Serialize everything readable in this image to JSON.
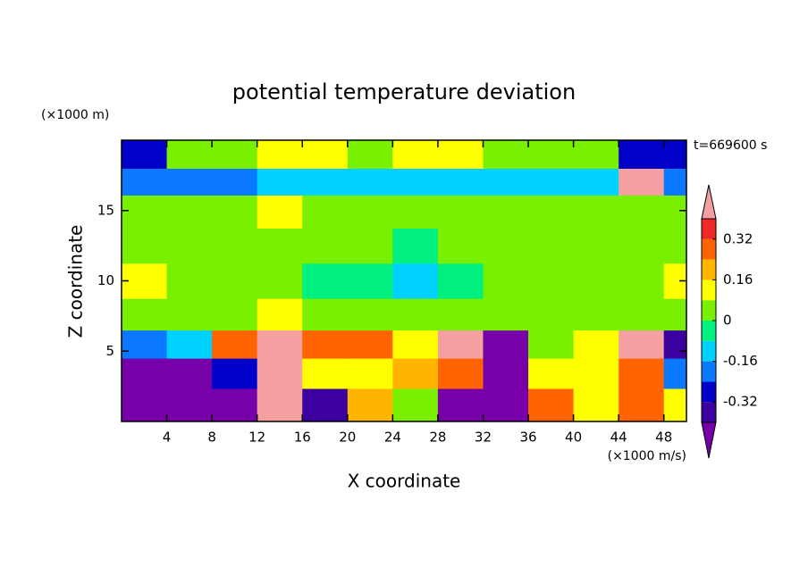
{
  "chart_data": {
    "type": "contour",
    "title": "potential temperature deviation",
    "x_label": "X coordinate",
    "y_label": "Z coordinate",
    "x_unit": "(×1000 m/s)",
    "y_unit": "(×1000 m)",
    "annotation": "t=669600 s",
    "xlim": [
      0,
      50
    ],
    "ylim": [
      0,
      20
    ],
    "xticks": [
      4,
      8,
      12,
      16,
      20,
      24,
      28,
      32,
      36,
      40,
      44,
      48
    ],
    "yticks": [
      5,
      10,
      15
    ],
    "x": [
      2,
      6,
      10,
      14,
      18,
      22,
      26,
      30,
      34,
      38,
      42,
      46,
      50
    ],
    "y": [
      1.2,
      3.5,
      5.5,
      7.5,
      10,
      12.5,
      15,
      17.2,
      18.8
    ],
    "z": [
      [
        -0.45,
        -0.45,
        -0.45,
        0.45,
        -0.35,
        0.2,
        0.05,
        -0.45,
        -0.45,
        0.3,
        0.1,
        0.3,
        0.1
      ],
      [
        -0.45,
        -0.45,
        -0.3,
        0.45,
        0.1,
        0.1,
        0.2,
        0.3,
        -0.45,
        0.1,
        0.1,
        0.3,
        -0.2
      ],
      [
        -0.2,
        -0.1,
        0.3,
        0.45,
        0.3,
        0.3,
        0.1,
        0.45,
        -0.45,
        0.05,
        0.1,
        0.45,
        -0.4
      ],
      [
        0.05,
        0.05,
        0.05,
        0.1,
        0.02,
        0.02,
        0.02,
        0.02,
        0.02,
        0.02,
        0.02,
        0.05,
        0.02
      ],
      [
        0.1,
        0.02,
        0.02,
        0,
        -0.02,
        -0.03,
        -0.1,
        -0.02,
        0,
        0,
        0.03,
        0.05,
        0.1
      ],
      [
        0.02,
        0.02,
        0,
        0.02,
        0,
        0,
        -0.05,
        0,
        0,
        0,
        0.05,
        0.03,
        0.05
      ],
      [
        0.03,
        0.03,
        0.05,
        0.1,
        0.05,
        0.03,
        0.02,
        0.03,
        0.03,
        0.05,
        0.05,
        0.03,
        0.02
      ],
      [
        -0.2,
        -0.2,
        -0.2,
        -0.15,
        -0.15,
        -0.15,
        -0.15,
        -0.15,
        -0.15,
        -0.15,
        -0.15,
        0.45,
        -0.2
      ],
      [
        -0.25,
        0.05,
        0.05,
        0.1,
        0.1,
        0.05,
        0.1,
        0.1,
        0.05,
        0.05,
        0.02,
        -0.25,
        -0.3
      ]
    ],
    "levels": [
      -0.4,
      -0.32,
      -0.24,
      -0.16,
      -0.08,
      0,
      0.08,
      0.16,
      0.24,
      0.32,
      0.4
    ],
    "colors": [
      "#7800a8",
      "#3c00a0",
      "#0000c8",
      "#0a78ff",
      "#00d2ff",
      "#00f080",
      "#78f000",
      "#ffff00",
      "#ffb400",
      "#ff6400",
      "#f02828",
      "#f5a0a0"
    ],
    "colorbar_ticks": [
      -0.32,
      -0.16,
      0,
      0.16,
      0.32
    ]
  }
}
